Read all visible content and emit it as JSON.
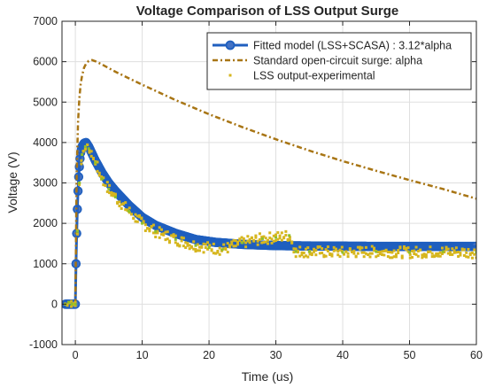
{
  "chart_data": {
    "type": "line",
    "title": "Voltage Comparison of LSS Output Surge",
    "xlabel": "Time (us)",
    "ylabel": "Voltage (V)",
    "xlim": [
      -2,
      60
    ],
    "ylim": [
      -1000,
      7000
    ],
    "x_ticks": [
      0,
      10,
      20,
      30,
      40,
      50,
      60
    ],
    "x_tick_labels": [
      "0",
      "10",
      "20",
      "30",
      "40",
      "50",
      "60"
    ],
    "y_ticks": [
      -1000,
      0,
      1000,
      2000,
      3000,
      4000,
      5000,
      6000,
      7000
    ],
    "y_tick_labels": [
      "-1000",
      "0",
      "1000",
      "2000",
      "3000",
      "4000",
      "5000",
      "6000",
      "7000"
    ],
    "grid": true,
    "legend_position": "top-right",
    "series": [
      {
        "name": "Fitted model (LSS+SCASA) : 3.12*alpha",
        "style": "thick line with circle markers",
        "color": "#1f5fbf",
        "x": [
          -1.5,
          -1,
          -0.5,
          0,
          0.1,
          0.2,
          0.3,
          0.4,
          0.5,
          0.6,
          0.7,
          0.8,
          1,
          1.3,
          1.6,
          2,
          3,
          4,
          5,
          6,
          8,
          10,
          12,
          15,
          18,
          21,
          25,
          30,
          35,
          40,
          45,
          50,
          55,
          60
        ],
        "y": [
          0,
          0,
          0,
          0,
          1000,
          1750,
          2350,
          2800,
          3150,
          3400,
          3600,
          3750,
          3900,
          3980,
          4000,
          3900,
          3550,
          3250,
          3000,
          2800,
          2450,
          2150,
          1950,
          1750,
          1600,
          1530,
          1480,
          1450,
          1440,
          1435,
          1430,
          1430,
          1430,
          1430
        ]
      },
      {
        "name": "Standard open-circuit surge: alpha",
        "style": "dash-dot line",
        "color": "#a87514",
        "x": [
          0,
          0.2,
          0.4,
          0.6,
          0.8,
          1,
          1.3,
          1.6,
          2,
          2.5,
          3,
          4,
          6,
          8,
          10,
          15,
          20,
          25,
          30,
          35,
          40,
          45,
          50,
          55,
          60
        ],
        "y": [
          0,
          3200,
          4500,
          5100,
          5450,
          5650,
          5850,
          5950,
          6020,
          6040,
          6010,
          5930,
          5750,
          5590,
          5430,
          5050,
          4700,
          4380,
          4080,
          3800,
          3540,
          3300,
          3070,
          2850,
          2610
        ]
      },
      {
        "name": "LSS output-experimental",
        "style": "small dot markers",
        "color": "#d6b61e",
        "x": [
          -1.5,
          -1,
          -0.5,
          0,
          0.3,
          0.6,
          1,
          1.5,
          2,
          3,
          4,
          5,
          6,
          8,
          10,
          12,
          15,
          18,
          20,
          22,
          25,
          28,
          30,
          32,
          33,
          35,
          40,
          45,
          50,
          55,
          60
        ],
        "y": [
          0,
          50,
          0,
          0,
          1800,
          3000,
          3700,
          3900,
          3850,
          3500,
          3100,
          2850,
          2650,
          2300,
          2000,
          1800,
          1600,
          1450,
          1400,
          1350,
          1520,
          1620,
          1650,
          1700,
          1300,
          1300,
          1280,
          1300,
          1280,
          1300,
          1280
        ]
      }
    ]
  }
}
